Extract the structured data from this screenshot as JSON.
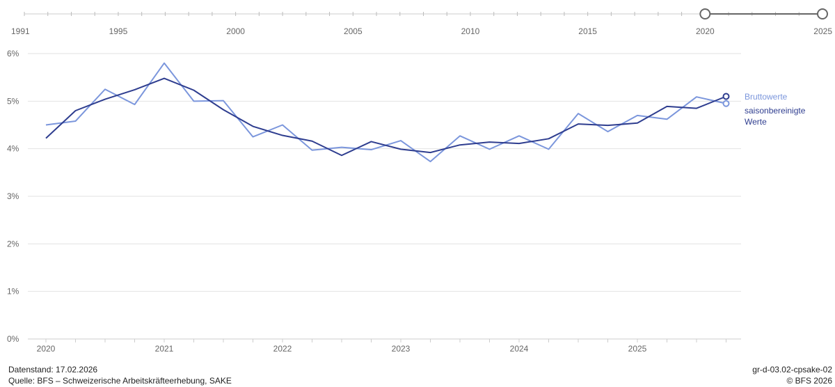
{
  "range_slider": {
    "ticks": [
      "1991",
      "1995",
      "2000",
      "2005",
      "2010",
      "2015",
      "2020",
      "2025"
    ],
    "range_start": "2020",
    "range_end": "2025"
  },
  "chart_data": {
    "type": "line",
    "x_categories": [
      "2020-Q1",
      "2020-Q2",
      "2020-Q3",
      "2020-Q4",
      "2021-Q1",
      "2021-Q2",
      "2021-Q3",
      "2021-Q4",
      "2022-Q1",
      "2022-Q2",
      "2022-Q3",
      "2022-Q4",
      "2023-Q1",
      "2023-Q2",
      "2023-Q3",
      "2023-Q4",
      "2024-Q1",
      "2024-Q2",
      "2024-Q3",
      "2024-Q4",
      "2025-Q1",
      "2025-Q2",
      "2025-Q3",
      "2025-Q4"
    ],
    "x_tick_labels": [
      "2020",
      "2021",
      "2022",
      "2023",
      "2024",
      "2025"
    ],
    "y_tick_labels": [
      "0%",
      "1%",
      "2%",
      "3%",
      "4%",
      "5%",
      "6%"
    ],
    "ylim": [
      0,
      6
    ],
    "series": [
      {
        "name": "Bruttowerte",
        "color": "#7b96dc",
        "values": [
          4.5,
          4.58,
          5.25,
          4.93,
          5.8,
          5.0,
          5.01,
          4.25,
          4.5,
          3.97,
          4.03,
          3.98,
          4.17,
          3.73,
          4.27,
          3.99,
          4.27,
          3.99,
          4.74,
          4.36,
          4.7,
          4.62,
          5.09,
          4.95
        ]
      },
      {
        "name": "saisonbereinigte Werte",
        "color": "#2e3d8f",
        "values": [
          4.22,
          4.8,
          5.04,
          5.24,
          5.48,
          5.23,
          4.82,
          4.47,
          4.28,
          4.16,
          3.86,
          4.15,
          3.99,
          3.92,
          4.08,
          4.14,
          4.11,
          4.21,
          4.52,
          4.49,
          4.54,
          4.89,
          4.85,
          5.1
        ]
      }
    ],
    "grid": true,
    "legend_position": "right"
  },
  "legend": {
    "brutto": "Bruttowerte",
    "saison_line1": "saisonbereinigte",
    "saison_line2": "Werte"
  },
  "footer": {
    "datenstand": "Datenstand: 17.02.2026",
    "quelle": "Quelle: BFS – Schweizerische Arbeitskräfteerhebung, SAKE",
    "code": "gr-d-03.02-cpsake-02",
    "copyright": "© BFS 2026"
  },
  "colors": {
    "grid": "#e2e2e2",
    "axis": "#cccccc",
    "slider": "#666666"
  }
}
